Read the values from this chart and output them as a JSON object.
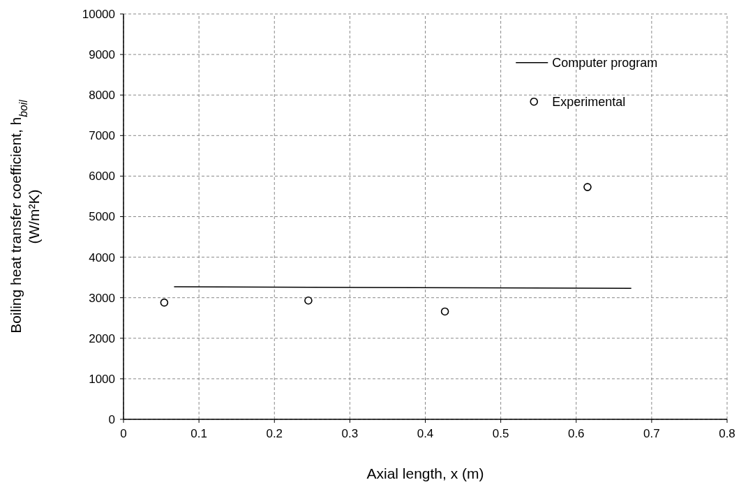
{
  "chart_data": {
    "type": "scatter",
    "xlabel": "Axial length, x (m)",
    "ylabel": "Boiling heat transfer coefficient, h$_{boil}$\n(W/m²K)",
    "xlim": [
      0,
      0.8
    ],
    "xticks": [
      0,
      0.1,
      0.2,
      0.3,
      0.4,
      0.5,
      0.6,
      0.7,
      0.8
    ],
    "ylim": [
      0,
      10000
    ],
    "yticks": [
      0,
      1000,
      2000,
      3000,
      4000,
      5000,
      6000,
      7000,
      8000,
      9000,
      10000
    ],
    "grid": true,
    "legend": "top right",
    "series": [
      {
        "name": "Computer program",
        "type": "line",
        "color": "#000000",
        "line_style": "solid",
        "x": [
          0.067,
          0.673
        ],
        "values": [
          3270,
          3230
        ]
      },
      {
        "name": "Experimental",
        "color": "#000000",
        "marker": "circle",
        "x": [
          0.054,
          0.245,
          0.426,
          0.615
        ],
        "values": [
          2880,
          2930,
          2660,
          5730
        ]
      }
    ]
  }
}
